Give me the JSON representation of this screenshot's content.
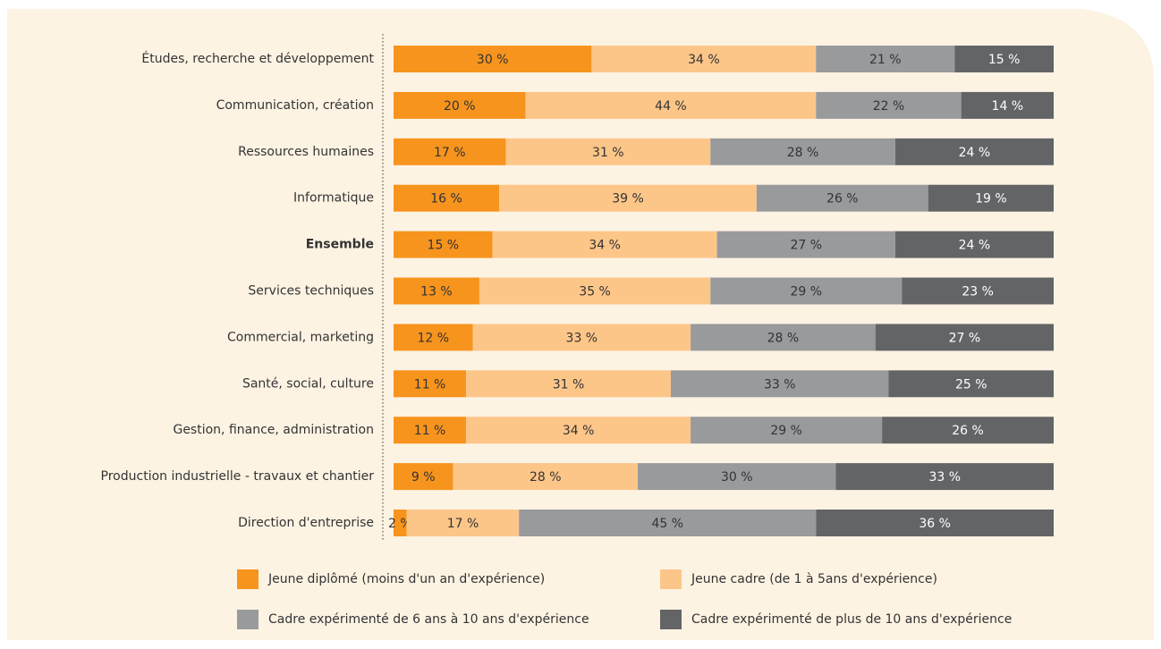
{
  "chart_data": {
    "type": "stacked_barh",
    "categories": [
      "Études, recherche et développement",
      "Communication, création",
      "Ressources humaines",
      "Informatique",
      "Ensemble",
      "Services techniques",
      "Commercial, marketing",
      "Santé, social, culture",
      "Gestion, finance, administration",
      "Production industrielle - travaux et chantier",
      "Direction d'entreprise"
    ],
    "highlight_category": "Ensemble",
    "series": [
      {
        "name": "Jeune diplômé (moins d'un an d'expérience)",
        "color": "#f7941d",
        "label_color": "#333333",
        "values": [
          30,
          20,
          17,
          16,
          15,
          13,
          12,
          11,
          11,
          9,
          2
        ],
        "value_labels": [
          "30 %",
          "20 %",
          "17 %",
          "16 %",
          "15 %",
          "13 %",
          "12 %",
          "11 %",
          "11 %",
          "9 %",
          "2 %"
        ]
      },
      {
        "name": "Jeune cadre (de 1 à 5ans d'expérience)",
        "color": "#fdc689",
        "label_color": "#333333",
        "values": [
          34,
          44,
          31,
          39,
          34,
          35,
          33,
          31,
          34,
          28,
          17
        ],
        "value_labels": [
          "34 %",
          "44 %",
          "31 %",
          "39 %",
          "34 %",
          "35 %",
          "33 %",
          "31 %",
          "34 %",
          "28 %",
          "17 %"
        ]
      },
      {
        "name": "Cadre expérimenté de 6 ans à 10 ans d'expérience",
        "color": "#999a9c",
        "label_color": "#333333",
        "values": [
          21,
          22,
          28,
          26,
          27,
          29,
          28,
          33,
          29,
          30,
          45
        ],
        "value_labels": [
          "21 %",
          "22 %",
          "28 %",
          "26 %",
          "27 %",
          "29 %",
          "28 %",
          "33 %",
          "29 %",
          "30 %",
          "45 %"
        ]
      },
      {
        "name": "Cadre expérimenté de plus de 10 ans d'expérience",
        "color": "#636466",
        "label_color": "#ffffff",
        "values": [
          15,
          14,
          24,
          19,
          24,
          23,
          27,
          25,
          26,
          33,
          36
        ],
        "value_labels": [
          "15 %",
          "14 %",
          "24 %",
          "19 %",
          "24 %",
          "23 %",
          "27 %",
          "25 %",
          "26 %",
          "33 %",
          "36 %"
        ]
      }
    ]
  }
}
